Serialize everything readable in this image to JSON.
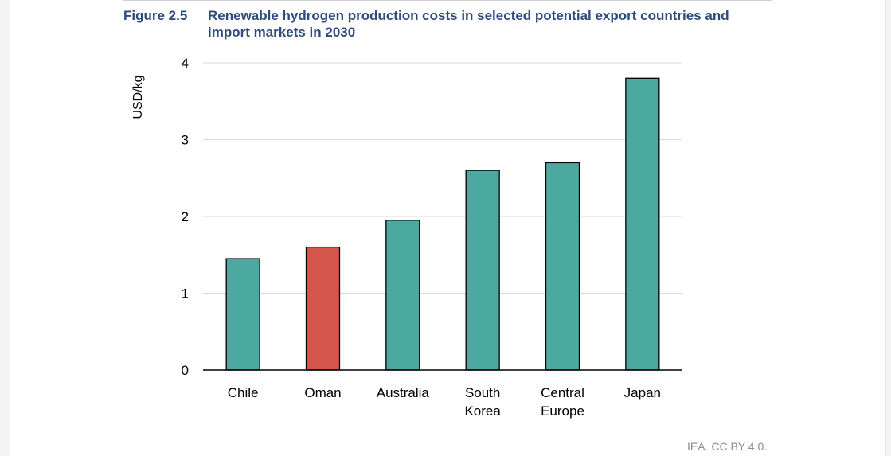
{
  "figure": {
    "number": "Figure 2.5",
    "title": "Renewable hydrogen production costs in selected potential export countries and import markets in 2030",
    "source": "IEA. CC BY 4.0."
  },
  "colors": {
    "title": "#2d4b7e",
    "bar_default": "#4ca9a0",
    "bar_highlight": "#d4554a",
    "grid": "#d9d9d9",
    "axis": "#000000"
  },
  "chart_data": {
    "type": "bar",
    "title": "Renewable hydrogen production costs in selected potential export countries and import markets in 2030",
    "xlabel": "",
    "ylabel": "USD/kg",
    "ylim": [
      0,
      4
    ],
    "yticks": [
      "0",
      "1",
      "2",
      "3",
      "4"
    ],
    "grid": true,
    "categories": [
      [
        "Chile"
      ],
      [
        "Oman"
      ],
      [
        "Australia"
      ],
      [
        "South",
        "Korea"
      ],
      [
        "Central",
        "Europe"
      ],
      [
        "Japan"
      ]
    ],
    "values": [
      1.45,
      1.6,
      1.95,
      2.6,
      2.7,
      3.8
    ],
    "highlight": [
      false,
      true,
      false,
      false,
      false,
      false
    ]
  }
}
